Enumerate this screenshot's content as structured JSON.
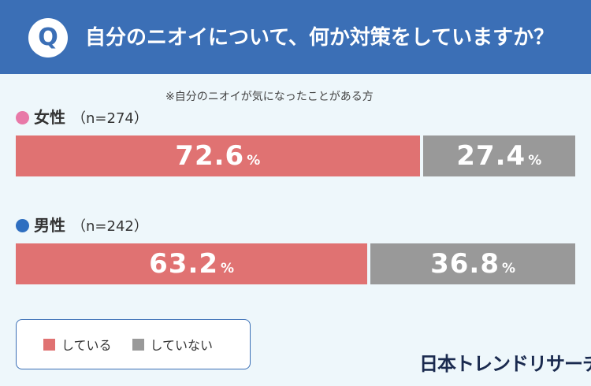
{
  "header": {
    "badge": "Q",
    "question": "自分のニオイについて、何か対策をしていますか？"
  },
  "note": "※自分のニオイが気になったことがある方",
  "colors": {
    "header_bg": "#3b6fb6",
    "doing": "#e07272",
    "not_doing": "#999999",
    "female_dot": "#e879a8",
    "male_dot": "#2f6fc0"
  },
  "chart_data": {
    "type": "bar",
    "orientation": "horizontal-stacked",
    "unit": "%",
    "xlim": [
      0,
      100
    ],
    "series_names": [
      "している",
      "していない"
    ],
    "groups": [
      {
        "label": "女性",
        "n": "（n=274）",
        "values": [
          72.6,
          27.4
        ]
      },
      {
        "label": "男性",
        "n": "（n=242）",
        "values": [
          63.2,
          36.8
        ]
      }
    ]
  },
  "legend": [
    {
      "label": "している"
    },
    {
      "label": "していない"
    }
  ],
  "brand": "日本トレンドリサーチ"
}
